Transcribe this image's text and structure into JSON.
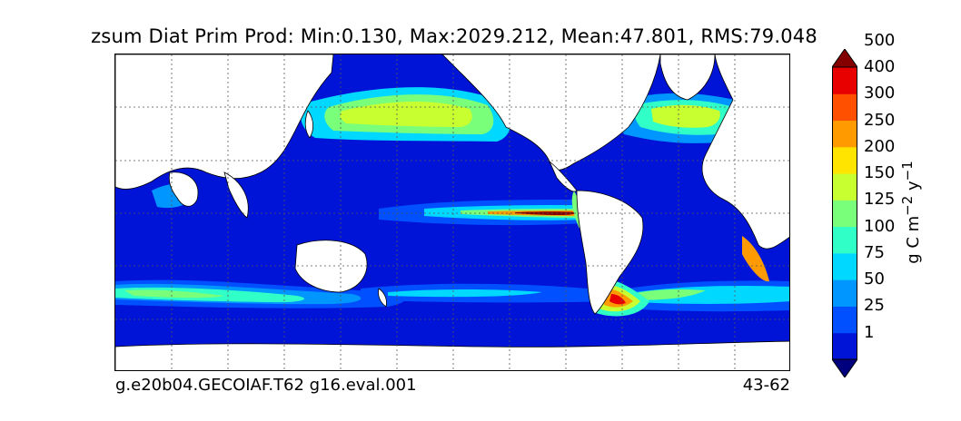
{
  "title": "zsum Diat Prim Prod: Min:0.130, Max:2029.212, Mean:47.801, RMS:79.048",
  "footer": {
    "case_name": "g.e20b04.GECOIAF.T62 g16.eval.001",
    "years": "43-62"
  },
  "colorbar": {
    "unit_html": "g C m<sup>−2</sup> y<sup>−1</sup>",
    "levels": [
      "1",
      "25",
      "50",
      "75",
      "100",
      "125",
      "150",
      "200",
      "250",
      "300",
      "400",
      "500"
    ],
    "colors": [
      "#00007f",
      "#0014d8",
      "#0050ff",
      "#0096ff",
      "#00d8ff",
      "#30ffc8",
      "#7aff7a",
      "#c8ff30",
      "#ffe400",
      "#ff9a00",
      "#ff5000",
      "#e80000",
      "#840000"
    ]
  },
  "map": {
    "land_color": "#ffffff",
    "ocean_base_color": "#0014d8",
    "gridlines": "dotted"
  }
}
